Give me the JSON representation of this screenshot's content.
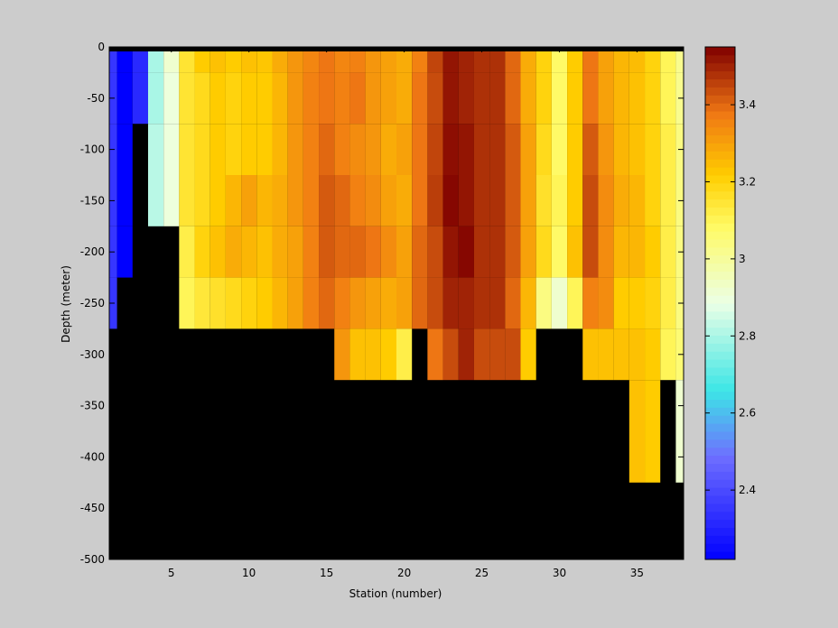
{
  "chart_data": {
    "type": "heatmap",
    "title": "",
    "xlabel": "Station (number)",
    "ylabel": "Depth (meter)",
    "xlim": [
      1,
      38
    ],
    "ylim": [
      -500,
      0
    ],
    "x_ticks": [
      5,
      10,
      15,
      20,
      25,
      30,
      35
    ],
    "y_ticks": [
      0,
      -50,
      -100,
      -150,
      -200,
      -250,
      -300,
      -350,
      -400,
      -450,
      -500
    ],
    "colorbar": {
      "range": [
        2.22,
        3.55
      ],
      "ticks": [
        2.4,
        2.6,
        2.8,
        3,
        3.2,
        3.4
      ],
      "tick_labels": [
        "2.4",
        "2.6",
        "2.8",
        "3",
        "3.2",
        "3.4"
      ],
      "colormap": "jet-like blue-cyan-white-yellow-orange-darkred"
    },
    "background_color": "#000000",
    "no_data_color": "#000000",
    "stations": [
      1,
      2,
      3,
      4,
      5,
      6,
      7,
      8,
      9,
      10,
      11,
      12,
      13,
      14,
      15,
      16,
      17,
      18,
      19,
      20,
      21,
      22,
      23,
      24,
      25,
      26,
      27,
      28,
      29,
      30,
      31,
      32,
      33,
      34,
      35,
      36,
      37,
      38
    ],
    "depths": [
      0,
      -25,
      -75,
      -125,
      -175,
      -225,
      -275,
      -325,
      -375
    ],
    "values": [
      [
        2.35,
        2.22,
        2.32,
        2.8,
        2.92,
        3.15,
        3.22,
        3.24,
        3.22,
        3.24,
        3.23,
        3.28,
        3.32,
        3.35,
        3.38,
        3.35,
        3.36,
        3.32,
        3.3,
        3.28,
        3.36,
        3.45,
        3.52,
        3.5,
        3.48,
        3.48,
        3.4,
        3.28,
        3.2,
        3.08,
        3.22,
        3.38,
        3.3,
        3.26,
        3.25,
        3.2,
        3.1,
        3.02
      ],
      [
        2.35,
        2.22,
        2.32,
        2.8,
        2.9,
        3.15,
        3.18,
        3.22,
        3.2,
        3.22,
        3.22,
        3.26,
        3.32,
        3.36,
        3.38,
        3.36,
        3.38,
        3.32,
        3.3,
        3.28,
        3.38,
        3.44,
        3.52,
        3.5,
        3.48,
        3.48,
        3.4,
        3.28,
        3.2,
        3.08,
        3.22,
        3.38,
        3.3,
        3.26,
        3.24,
        3.2,
        3.1,
        3.02
      ],
      [
        2.35,
        2.22,
        null,
        2.82,
        2.9,
        3.15,
        3.18,
        3.22,
        3.2,
        3.22,
        3.22,
        3.26,
        3.32,
        3.36,
        3.4,
        3.36,
        3.34,
        3.32,
        3.28,
        3.3,
        3.38,
        3.45,
        3.53,
        3.52,
        3.48,
        3.48,
        3.42,
        3.3,
        3.18,
        3.08,
        3.22,
        3.42,
        3.32,
        3.26,
        3.24,
        3.2,
        3.12,
        3.04
      ],
      [
        2.35,
        2.22,
        null,
        2.82,
        2.9,
        3.15,
        3.18,
        3.22,
        3.26,
        3.3,
        3.26,
        3.28,
        3.32,
        3.36,
        3.42,
        3.4,
        3.36,
        3.34,
        3.3,
        3.28,
        3.38,
        3.46,
        3.54,
        3.52,
        3.48,
        3.48,
        3.42,
        3.3,
        3.16,
        3.1,
        3.22,
        3.44,
        3.34,
        3.28,
        3.26,
        3.2,
        3.12,
        3.04
      ],
      [
        2.35,
        2.22,
        null,
        null,
        null,
        3.12,
        3.2,
        3.24,
        3.28,
        3.26,
        3.24,
        3.28,
        3.3,
        3.36,
        3.42,
        3.4,
        3.4,
        3.38,
        3.34,
        3.3,
        3.4,
        3.44,
        3.52,
        3.54,
        3.48,
        3.48,
        3.42,
        3.3,
        3.18,
        3.08,
        3.24,
        3.44,
        3.34,
        3.26,
        3.26,
        3.22,
        3.12,
        3.04
      ],
      [
        2.35,
        null,
        null,
        null,
        null,
        3.1,
        3.14,
        3.16,
        3.18,
        3.2,
        3.22,
        3.26,
        3.3,
        3.36,
        3.4,
        3.36,
        3.32,
        3.3,
        3.28,
        3.3,
        3.4,
        3.44,
        3.5,
        3.5,
        3.48,
        3.48,
        3.4,
        3.26,
        3.04,
        2.92,
        3.1,
        3.36,
        3.34,
        3.22,
        3.22,
        3.2,
        3.12,
        3.04
      ],
      [
        null,
        null,
        null,
        null,
        null,
        null,
        null,
        null,
        null,
        null,
        null,
        null,
        null,
        null,
        null,
        3.32,
        3.24,
        3.24,
        3.22,
        3.12,
        null,
        3.38,
        3.44,
        3.5,
        3.44,
        3.44,
        3.44,
        3.22,
        null,
        null,
        null,
        3.24,
        3.24,
        3.24,
        3.24,
        3.22,
        3.1,
        3.06
      ],
      [
        null,
        null,
        null,
        null,
        null,
        null,
        null,
        null,
        null,
        null,
        null,
        null,
        null,
        null,
        null,
        null,
        null,
        null,
        null,
        null,
        null,
        null,
        null,
        null,
        null,
        null,
        null,
        null,
        null,
        null,
        null,
        null,
        null,
        null,
        3.24,
        3.22,
        null,
        2.92
      ],
      [
        null,
        null,
        null,
        null,
        null,
        null,
        null,
        null,
        null,
        null,
        null,
        null,
        null,
        null,
        null,
        null,
        null,
        null,
        null,
        null,
        null,
        null,
        null,
        null,
        null,
        null,
        null,
        null,
        null,
        null,
        null,
        null,
        null,
        null,
        3.24,
        3.22,
        null,
        2.92
      ]
    ]
  },
  "colors": {
    "figure_background": "#cccccc",
    "axes_background": "#000000",
    "axis_color": "#000000"
  }
}
